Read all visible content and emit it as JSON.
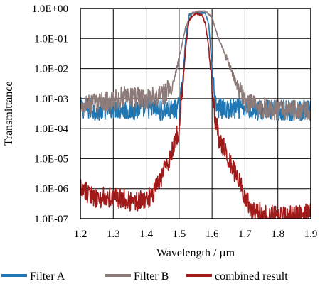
{
  "chart_data": {
    "type": "line",
    "title": "",
    "xlabel": "Wavelength / µm",
    "ylabel": "Transmittance",
    "xlim": [
      1.2,
      1.9
    ],
    "ylim": [
      1e-07,
      1
    ],
    "y_scale": "log",
    "grid": true,
    "legend_position": "bottom",
    "x_ticks": [
      1.2,
      1.3,
      1.4,
      1.5,
      1.6,
      1.7,
      1.8,
      1.9
    ],
    "x_tick_labels": [
      "1.2",
      "1.3",
      "1.4",
      "1.5",
      "1.6",
      "1.7",
      "1.8",
      "1.9"
    ],
    "y_ticks": [
      1e-07,
      1e-06,
      1e-05,
      0.0001,
      0.001,
      0.01,
      0.1,
      1
    ],
    "y_tick_labels": [
      "1.0E-07",
      "1.0E-06",
      "1.0E-05",
      "1.0E-04",
      "1.0E-03",
      "1.0E-02",
      "1.0E-01",
      "1.0E+00"
    ],
    "series": [
      {
        "name": "Filter A",
        "color": "#1f77b4",
        "x": [
          1.2,
          1.25,
          1.3,
          1.35,
          1.4,
          1.45,
          1.48,
          1.5,
          1.51,
          1.52,
          1.53,
          1.55,
          1.58,
          1.59,
          1.6,
          1.61,
          1.62,
          1.65,
          1.7,
          1.75,
          1.8,
          1.85,
          1.9
        ],
        "y": [
          0.0005,
          0.0004,
          0.0005,
          0.0004,
          0.0005,
          0.0004,
          0.0004,
          0.0005,
          0.003,
          0.1,
          0.6,
          0.75,
          0.7,
          0.3,
          0.01,
          0.0006,
          0.0005,
          0.0004,
          0.0005,
          0.0004,
          0.0004,
          0.0004,
          0.0004
        ]
      },
      {
        "name": "Filter B",
        "color": "#8c7b78",
        "x": [
          1.2,
          1.25,
          1.3,
          1.33,
          1.35,
          1.4,
          1.45,
          1.48,
          1.5,
          1.52,
          1.54,
          1.56,
          1.58,
          1.6,
          1.62,
          1.64,
          1.66,
          1.68,
          1.7,
          1.72,
          1.75,
          1.8,
          1.85,
          1.9
        ],
        "y": [
          0.0005,
          0.0007,
          0.0008,
          0.0012,
          0.0011,
          0.001,
          0.0012,
          0.003,
          0.02,
          0.25,
          0.7,
          0.8,
          0.8,
          0.5,
          0.1,
          0.03,
          0.008,
          0.002,
          0.0008,
          0.0006,
          0.0005,
          0.0004,
          0.0004,
          0.0004
        ]
      },
      {
        "name": "combined result",
        "color": "#a01a1a",
        "x": [
          1.2,
          1.25,
          1.3,
          1.35,
          1.4,
          1.43,
          1.46,
          1.48,
          1.5,
          1.51,
          1.52,
          1.53,
          1.55,
          1.57,
          1.58,
          1.59,
          1.6,
          1.61,
          1.62,
          1.63,
          1.65,
          1.68,
          1.7,
          1.72,
          1.75,
          1.8,
          1.85,
          1.9
        ],
        "y": [
          1e-06,
          5e-07,
          5e-07,
          4e-07,
          4e-07,
          1e-06,
          5e-06,
          2e-05,
          0.0001,
          0.002,
          0.05,
          0.4,
          0.7,
          0.6,
          0.3,
          0.05,
          0.003,
          0.0002,
          5e-05,
          3e-05,
          1e-05,
          2e-06,
          5e-07,
          2e-07,
          1.5e-07,
          1.2e-07,
          1.2e-07,
          1.5e-07
        ]
      }
    ]
  }
}
